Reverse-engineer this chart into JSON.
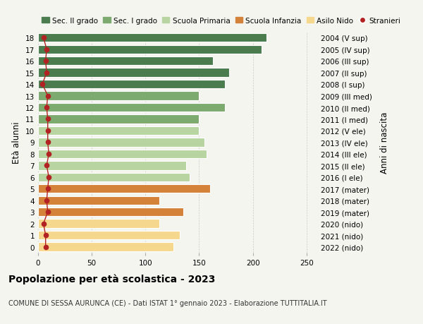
{
  "ages": [
    18,
    17,
    16,
    15,
    14,
    13,
    12,
    11,
    10,
    9,
    8,
    7,
    6,
    5,
    4,
    3,
    2,
    1,
    0
  ],
  "bar_values": [
    213,
    208,
    163,
    178,
    174,
    150,
    174,
    150,
    150,
    155,
    157,
    138,
    141,
    160,
    113,
    135,
    113,
    132,
    126
  ],
  "stranieri_values": [
    5,
    8,
    7,
    8,
    4,
    9,
    8,
    9,
    9,
    9,
    10,
    8,
    10,
    9,
    8,
    9,
    5,
    7,
    7
  ],
  "bar_colors": [
    "#4a7c4e",
    "#4a7c4e",
    "#4a7c4e",
    "#4a7c4e",
    "#4a7c4e",
    "#7daa6e",
    "#7daa6e",
    "#7daa6e",
    "#b8d4a0",
    "#b8d4a0",
    "#b8d4a0",
    "#b8d4a0",
    "#b8d4a0",
    "#d4813a",
    "#d4813a",
    "#d4813a",
    "#f5d78e",
    "#f5d78e",
    "#f5d78e"
  ],
  "right_labels": [
    "2004 (V sup)",
    "2005 (IV sup)",
    "2006 (III sup)",
    "2007 (II sup)",
    "2008 (I sup)",
    "2009 (III med)",
    "2010 (II med)",
    "2011 (I med)",
    "2012 (V ele)",
    "2013 (IV ele)",
    "2014 (III ele)",
    "2015 (II ele)",
    "2016 (I ele)",
    "2017 (mater)",
    "2018 (mater)",
    "2019 (mater)",
    "2020 (nido)",
    "2021 (nido)",
    "2022 (nido)"
  ],
  "legend_labels": [
    "Sec. II grado",
    "Sec. I grado",
    "Scuola Primaria",
    "Scuola Infanzia",
    "Asilo Nido",
    "Stranieri"
  ],
  "legend_colors": [
    "#4a7c4e",
    "#7daa6e",
    "#b8d4a0",
    "#d4813a",
    "#f5d78e",
    "#b22222"
  ],
  "ylabel": "Età alunni",
  "right_ylabel": "Anni di nascita",
  "title": "Popolazione per età scolastica - 2023",
  "subtitle": "COMUNE DI SESSA AURUNCA (CE) - Dati ISTAT 1° gennaio 2023 - Elaborazione TUTTITALIA.IT",
  "xlim": [
    0,
    260
  ],
  "xticks": [
    0,
    50,
    100,
    150,
    200,
    250
  ],
  "background_color": "#f5f5f0",
  "grid_color": "#cccccc",
  "stranieri_color": "#b22222"
}
